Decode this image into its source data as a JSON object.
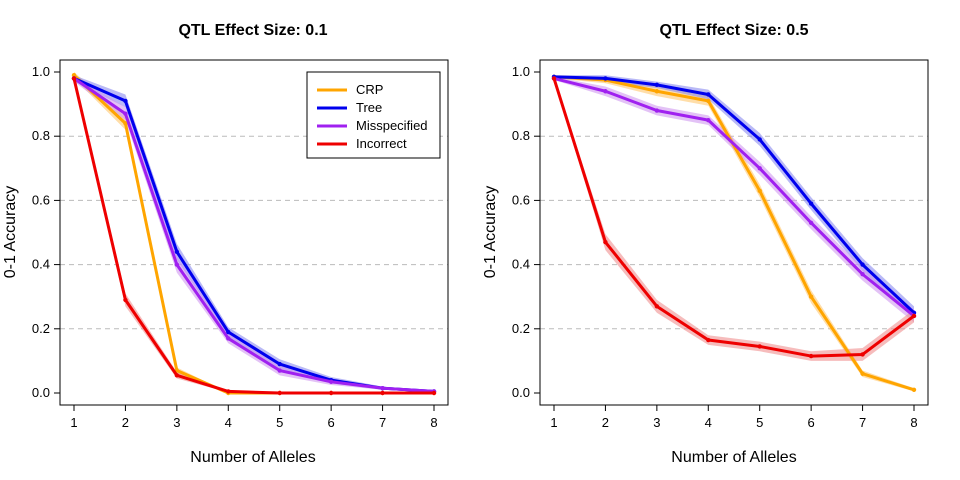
{
  "chart_data": [
    {
      "type": "line",
      "title": "QTL Effect Size: 0.1",
      "xlabel": "Number of Alleles",
      "ylabel": "0-1 Accuracy",
      "xlim": [
        1,
        8
      ],
      "ylim": [
        0,
        1
      ],
      "x": [
        1,
        2,
        3,
        4,
        5,
        6,
        7,
        8
      ],
      "x_ticks": [
        "1",
        "2",
        "3",
        "4",
        "5",
        "6",
        "7",
        "8"
      ],
      "y_ticks": [
        "0.0",
        "0.2",
        "0.4",
        "0.6",
        "0.8",
        "1.0"
      ],
      "grid": "horizontal dashed at y ticks",
      "legend": "top-right",
      "series": [
        {
          "name": "CRP",
          "color": "#FFA500",
          "band_color": "#FFC870",
          "values": [
            0.99,
            0.84,
            0.07,
            0.0,
            0.0,
            0.0,
            0.0,
            0.0
          ],
          "band": [
            0.01,
            0.02,
            0.01,
            0.0,
            0.0,
            0.0,
            0.0,
            0.0
          ]
        },
        {
          "name": "Tree",
          "color": "#0000EE",
          "band_color": "#8A8AF0",
          "values": [
            0.98,
            0.91,
            0.44,
            0.19,
            0.09,
            0.04,
            0.015,
            0.005
          ],
          "band": [
            0.01,
            0.02,
            0.025,
            0.015,
            0.015,
            0.01,
            0.005,
            0.003
          ]
        },
        {
          "name": "Misspecified",
          "color": "#A020F0",
          "band_color": "#D09AF0",
          "values": [
            0.98,
            0.87,
            0.4,
            0.17,
            0.07,
            0.035,
            0.015,
            0.005
          ],
          "band": [
            0.01,
            0.02,
            0.025,
            0.015,
            0.015,
            0.01,
            0.005,
            0.003
          ]
        },
        {
          "name": "Incorrect",
          "color": "#EE0000",
          "band_color": "#F09090",
          "values": [
            0.98,
            0.29,
            0.055,
            0.005,
            0.0,
            0.0,
            0.0,
            0.0
          ],
          "band": [
            0.01,
            0.02,
            0.01,
            0.003,
            0.0,
            0.0,
            0.0,
            0.0
          ]
        }
      ]
    },
    {
      "type": "line",
      "title": "QTL Effect Size: 0.5",
      "xlabel": "Number of Alleles",
      "ylabel": "0-1 Accuracy",
      "xlim": [
        1,
        8
      ],
      "ylim": [
        0,
        1
      ],
      "x": [
        1,
        2,
        3,
        4,
        5,
        6,
        7,
        8
      ],
      "x_ticks": [
        "1",
        "2",
        "3",
        "4",
        "5",
        "6",
        "7",
        "8"
      ],
      "y_ticks": [
        "0.0",
        "0.2",
        "0.4",
        "0.6",
        "0.8",
        "1.0"
      ],
      "grid": "horizontal dashed at y ticks",
      "series": [
        {
          "name": "CRP",
          "color": "#FFA500",
          "band_color": "#FFC870",
          "values": [
            0.985,
            0.975,
            0.94,
            0.91,
            0.63,
            0.3,
            0.06,
            0.01
          ],
          "band": [
            0.005,
            0.01,
            0.015,
            0.015,
            0.02,
            0.02,
            0.01,
            0.005
          ]
        },
        {
          "name": "Tree",
          "color": "#0000EE",
          "band_color": "#8A8AF0",
          "values": [
            0.985,
            0.98,
            0.96,
            0.93,
            0.79,
            0.59,
            0.4,
            0.25
          ],
          "band": [
            0.005,
            0.01,
            0.01,
            0.015,
            0.02,
            0.02,
            0.02,
            0.02
          ]
        },
        {
          "name": "Misspecified",
          "color": "#A020F0",
          "band_color": "#D09AF0",
          "values": [
            0.98,
            0.94,
            0.88,
            0.85,
            0.7,
            0.53,
            0.37,
            0.24
          ],
          "band": [
            0.005,
            0.015,
            0.015,
            0.015,
            0.02,
            0.02,
            0.02,
            0.02
          ]
        },
        {
          "name": "Incorrect",
          "color": "#EE0000",
          "band_color": "#F09090",
          "values": [
            0.98,
            0.47,
            0.27,
            0.165,
            0.145,
            0.115,
            0.12,
            0.24
          ],
          "band": [
            0.005,
            0.025,
            0.02,
            0.015,
            0.015,
            0.015,
            0.02,
            0.02
          ]
        }
      ]
    }
  ]
}
